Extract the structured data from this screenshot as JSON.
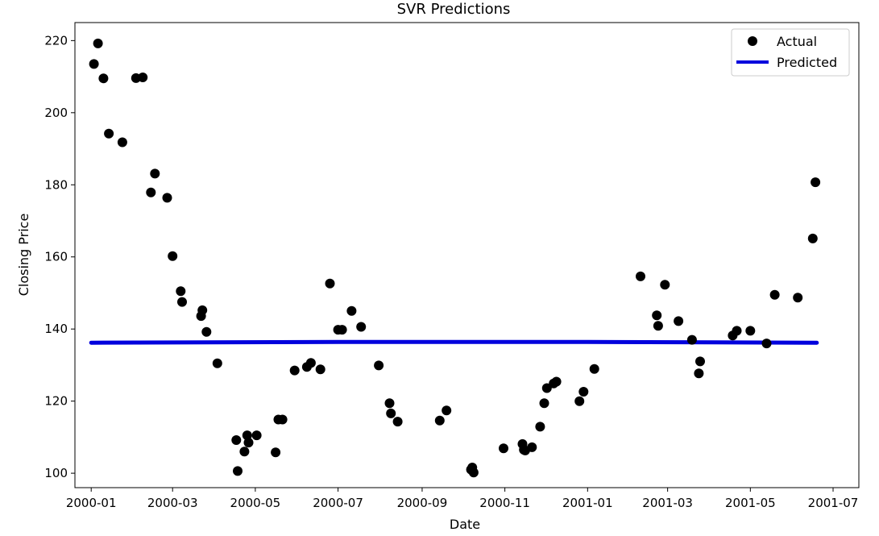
{
  "chart_data": {
    "type": "scatter",
    "title": "SVR Predictions",
    "xlabel": "Date",
    "ylabel": "Closing Price",
    "xlim": [
      "1999-12-20",
      "2001-07-20"
    ],
    "ylim": [
      96,
      225
    ],
    "x_ticks": [
      "2000-01",
      "2000-03",
      "2000-05",
      "2000-07",
      "2000-09",
      "2000-11",
      "2001-01",
      "2001-03",
      "2001-05",
      "2001-07"
    ],
    "y_ticks": [
      100,
      120,
      140,
      160,
      180,
      200,
      220
    ],
    "grid": false,
    "legend": {
      "placement": "top-right",
      "entries": [
        "Actual",
        "Predicted"
      ]
    },
    "colors": {
      "actual": "#000000",
      "predicted": "#0000dd"
    },
    "series": [
      {
        "name": "Actual",
        "style": "points",
        "points": [
          [
            "2000-01-03",
            213.5
          ],
          [
            "2000-01-06",
            219.2
          ],
          [
            "2000-01-10",
            209.5
          ],
          [
            "2000-01-14",
            194.2
          ],
          [
            "2000-01-24",
            191.8
          ],
          [
            "2000-02-03",
            209.6
          ],
          [
            "2000-02-08",
            209.8
          ],
          [
            "2000-02-14",
            177.9
          ],
          [
            "2000-02-17",
            183.1
          ],
          [
            "2000-02-26",
            176.4
          ],
          [
            "2000-03-01",
            160.2
          ],
          [
            "2000-03-07",
            150.5
          ],
          [
            "2000-03-08",
            147.5
          ],
          [
            "2000-03-22",
            143.6
          ],
          [
            "2000-03-23",
            145.2
          ],
          [
            "2000-03-26",
            139.2
          ],
          [
            "2000-04-03",
            130.5
          ],
          [
            "2000-04-17",
            109.2
          ],
          [
            "2000-04-18",
            100.6
          ],
          [
            "2000-04-23",
            106.0
          ],
          [
            "2000-04-25",
            110.5
          ],
          [
            "2000-04-26",
            108.5
          ],
          [
            "2000-05-02",
            110.5
          ],
          [
            "2000-05-16",
            105.8
          ],
          [
            "2000-05-18",
            114.9
          ],
          [
            "2000-05-21",
            114.9
          ],
          [
            "2000-05-30",
            128.5
          ],
          [
            "2000-06-08",
            129.5
          ],
          [
            "2000-06-11",
            130.6
          ],
          [
            "2000-06-18",
            128.8
          ],
          [
            "2000-06-25",
            152.6
          ],
          [
            "2000-07-01",
            139.8
          ],
          [
            "2000-07-04",
            139.8
          ],
          [
            "2000-07-11",
            145.0
          ],
          [
            "2000-07-18",
            140.6
          ],
          [
            "2000-07-31",
            129.9
          ],
          [
            "2000-08-08",
            119.4
          ],
          [
            "2000-08-09",
            116.6
          ],
          [
            "2000-08-14",
            114.3
          ],
          [
            "2000-09-14",
            114.6
          ],
          [
            "2000-09-19",
            117.4
          ],
          [
            "2000-10-07",
            101.0
          ],
          [
            "2000-10-08",
            101.6
          ],
          [
            "2000-10-09",
            100.2
          ],
          [
            "2000-10-31",
            106.9
          ],
          [
            "2000-11-14",
            108.1
          ],
          [
            "2000-11-15",
            106.5
          ],
          [
            "2000-11-16",
            106.3
          ],
          [
            "2000-11-21",
            107.2
          ],
          [
            "2000-11-27",
            112.9
          ],
          [
            "2000-11-30",
            119.4
          ],
          [
            "2000-12-02",
            123.6
          ],
          [
            "2000-12-07",
            124.9
          ],
          [
            "2000-12-09",
            125.4
          ],
          [
            "2000-12-26",
            120.0
          ],
          [
            "2000-12-29",
            122.6
          ],
          [
            "2001-01-06",
            128.9
          ],
          [
            "2001-02-09",
            154.6
          ],
          [
            "2001-02-21",
            143.8
          ],
          [
            "2001-02-22",
            140.9
          ],
          [
            "2001-02-27",
            152.3
          ],
          [
            "2001-03-09",
            142.2
          ],
          [
            "2001-03-19",
            137.0
          ],
          [
            "2001-03-24",
            127.7
          ],
          [
            "2001-03-25",
            131.0
          ],
          [
            "2001-04-18",
            138.2
          ],
          [
            "2001-04-21",
            139.5
          ],
          [
            "2001-05-01",
            139.5
          ],
          [
            "2001-05-13",
            136.0
          ],
          [
            "2001-05-19",
            149.5
          ],
          [
            "2001-06-05",
            148.7
          ],
          [
            "2001-06-16",
            165.1
          ],
          [
            "2001-06-18",
            180.7
          ]
        ]
      },
      {
        "name": "Predicted",
        "style": "line",
        "points": [
          [
            "2000-01-01",
            136.2
          ],
          [
            "2000-07-01",
            136.4
          ],
          [
            "2001-01-01",
            136.4
          ],
          [
            "2001-06-19",
            136.2
          ]
        ]
      }
    ]
  }
}
